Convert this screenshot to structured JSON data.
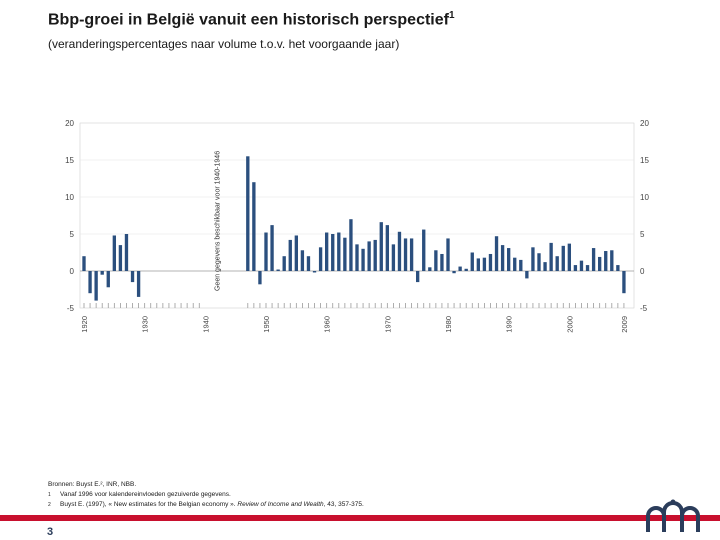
{
  "header": {
    "title": "Bbp-groei in België vanuit een historisch perspectief",
    "title_footnote": "1",
    "subtitle": "(veranderingspercentages naar volume t.o.v. het voorgaande jaar)"
  },
  "chart_data": {
    "type": "bar",
    "title": "Bbp-groei in België vanuit een historisch perspectief",
    "xlabel": "",
    "ylabel": "",
    "ylim": [
      -5,
      20
    ],
    "yticks": [
      -5,
      0,
      5,
      10,
      15,
      20
    ],
    "xlim": [
      1920,
      2010
    ],
    "xticks": [
      1920,
      1930,
      1940,
      1950,
      1960,
      1970,
      1980,
      1990,
      2000,
      2009
    ],
    "bar_color": "#2b4f7e",
    "gap_annotation": "Geen gegevens beschikbaar voor 1940-1946",
    "x": [
      1920,
      1921,
      1922,
      1923,
      1924,
      1925,
      1926,
      1927,
      1928,
      1929,
      1930,
      1931,
      1932,
      1933,
      1934,
      1935,
      1936,
      1937,
      1938,
      1939,
      1947,
      1948,
      1949,
      1950,
      1951,
      1952,
      1953,
      1954,
      1955,
      1956,
      1957,
      1958,
      1959,
      1960,
      1961,
      1962,
      1963,
      1964,
      1965,
      1966,
      1967,
      1968,
      1969,
      1970,
      1971,
      1972,
      1973,
      1974,
      1975,
      1976,
      1977,
      1978,
      1979,
      1980,
      1981,
      1982,
      1983,
      1984,
      1985,
      1986,
      1987,
      1988,
      1989,
      1990,
      1991,
      1992,
      1993,
      1994,
      1995,
      1996,
      1997,
      1998,
      1999,
      2000,
      2001,
      2002,
      2003,
      2004,
      2005,
      2006,
      2007,
      2008,
      2009
    ],
    "values": [
      2.0,
      -3.0,
      -4.0,
      -0.5,
      -2.2,
      4.8,
      3.5,
      5.0,
      -1.5,
      -3.5,
      null,
      null,
      null,
      null,
      null,
      null,
      null,
      null,
      null,
      null,
      15.5,
      12.0,
      -1.8,
      5.2,
      6.2,
      0.2,
      2.0,
      4.2,
      4.8,
      2.8,
      2.0,
      -0.2,
      3.2,
      5.2,
      5.0,
      5.2,
      4.5,
      7.0,
      3.6,
      3.0,
      4.0,
      4.2,
      6.6,
      6.2,
      3.6,
      5.3,
      4.4,
      4.4,
      -1.5,
      5.6,
      0.5,
      2.8,
      2.3,
      4.4,
      -0.3,
      0.6,
      0.3,
      2.5,
      1.7,
      1.8,
      2.3,
      4.7,
      3.5,
      3.1,
      1.8,
      1.5,
      -1.0,
      3.2,
      2.4,
      1.2,
      3.8,
      2.0,
      3.4,
      3.7,
      0.8,
      1.4,
      0.8,
      3.1,
      1.9,
      2.7,
      2.8,
      0.8,
      -3.0
    ]
  },
  "footer": {
    "sources_line": "Bronnen: Buyst E.², INR, NBB.",
    "note1_mark": "1",
    "note1_text": "Vanaf 1996 voor kalendereinvloeden gezuiverde gegevens.",
    "note2_mark": "2",
    "note2_prefix": "Buyst E. (1997), « New estimates for the Belgian economy ». ",
    "note2_journal": "Review of Income and Wealth",
    "note2_suffix": ", 43, 357-375."
  },
  "page": {
    "number": "3"
  },
  "colors": {
    "accent_bar": "#c8102e",
    "bars": "#2b4f7e",
    "grid": "#e3e3e3",
    "plot_bg": "#ffffff"
  }
}
